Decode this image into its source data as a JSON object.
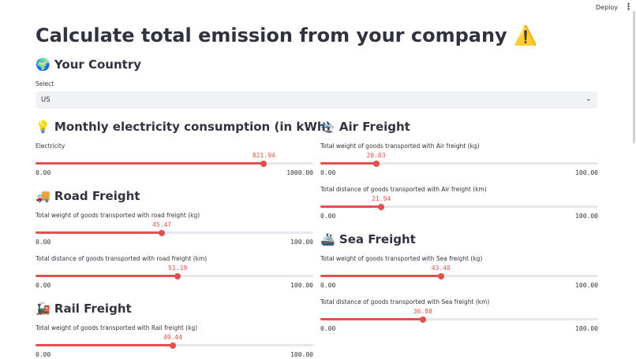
{
  "header": {
    "deploy": "Deploy"
  },
  "title": "Calculate total emission from your company ⚠️",
  "country": {
    "heading": "🌍 Your Country",
    "label": "Select",
    "value": "US"
  },
  "columns": [
    [
      {
        "heading": "💡 Monthly electricity consumption (in kWh)",
        "sliders": [
          {
            "label": "Electricity",
            "value": {
              "value": 821.94,
              "label": "821.94"
            },
            "min": {
              "value": 0,
              "label": "0.00"
            },
            "max": {
              "value": 1000,
              "label": "1000.00"
            }
          }
        ]
      },
      {
        "heading": "🚚 Road Freight",
        "sliders": [
          {
            "label": "Total weight of goods transported with road freight (kg)",
            "value": {
              "value": 45.47,
              "label": "45.47"
            },
            "min": {
              "value": 0,
              "label": "0.00"
            },
            "max": {
              "value": 100,
              "label": "100.00"
            }
          },
          {
            "label": "Total distance of goods transported with road freight (km)",
            "value": {
              "value": 51.19,
              "label": "51.19"
            },
            "min": {
              "value": 0,
              "label": "0.00"
            },
            "max": {
              "value": 100,
              "label": "100.00"
            }
          }
        ]
      },
      {
        "heading": "🚂 Rail Freight",
        "sliders": [
          {
            "label": "Total weight of goods transported with Rail freight (kg)",
            "value": {
              "value": 49.44,
              "label": "49.44"
            },
            "min": {
              "value": 0,
              "label": "0.00"
            },
            "max": {
              "value": 100,
              "label": "100.00"
            }
          }
        ]
      }
    ],
    [
      {
        "heading": "🛬 Air Freight",
        "sliders": [
          {
            "label": "Total weight of goods transported with Air freight (kg)",
            "value": {
              "value": 20.03,
              "label": "20.03"
            },
            "min": {
              "value": 0,
              "label": "0.00"
            },
            "max": {
              "value": 100,
              "label": "100.00"
            }
          },
          {
            "label": "Total distance of goods transported with Air freight (km)",
            "value": {
              "value": 21.94,
              "label": "21.94"
            },
            "min": {
              "value": 0,
              "label": "0.00"
            },
            "max": {
              "value": 100,
              "label": "100.00"
            }
          }
        ]
      },
      {
        "heading": "🚢 Sea Freight",
        "sliders": [
          {
            "label": "Total weight of goods transported with Sea freight (kg)",
            "value": {
              "value": 43.4,
              "label": "43.40"
            },
            "min": {
              "value": 0,
              "label": "0.00"
            },
            "max": {
              "value": 100,
              "label": "100.00"
            }
          },
          {
            "label": "Total distance of goods transported with Sea freight (km)",
            "value": {
              "value": 36.88,
              "label": "36.88"
            },
            "min": {
              "value": 0,
              "label": "0.00"
            },
            "max": {
              "value": 100,
              "label": "100.00"
            }
          }
        ]
      }
    ]
  ]
}
